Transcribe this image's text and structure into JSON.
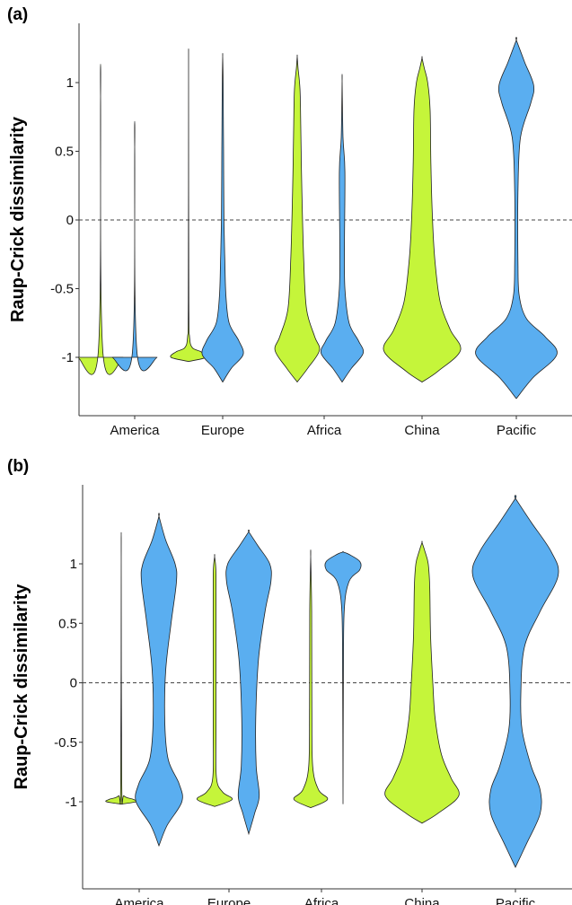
{
  "chart_data": [
    {
      "type": "violin",
      "panel_label": "(a)",
      "ylabel": "Raup-Crick dissimilarity",
      "categories": [
        "America",
        "Europe",
        "Africa",
        "China",
        "Pacific"
      ],
      "yticks": [
        "1",
        "0.5",
        "0",
        "-0.5",
        "-1"
      ],
      "ytick_values": [
        1,
        0.5,
        0,
        -0.5,
        -1
      ],
      "ylim": [
        -1.5,
        1.4
      ],
      "reference_line": 0,
      "colors": {
        "series1": "#c5f53a",
        "series2": "#5aaef0"
      },
      "violins": [
        {
          "category": "America",
          "series": 1,
          "min": -1.0,
          "max": 0.9,
          "profile": [
            [
              -1.0,
              0.9
            ],
            [
              -0.98,
              0.1
            ],
            [
              0.9,
              0
            ]
          ],
          "halfwidth": 28
        },
        {
          "category": "America",
          "series": 2,
          "min": -1.0,
          "max": 0.53,
          "profile": [
            [
              -1.0,
              0.9
            ],
            [
              -0.98,
              0.1
            ],
            [
              0.53,
              0
            ]
          ],
          "halfwidth": 28
        },
        {
          "category": "Europe",
          "series": 1,
          "min": -1.03,
          "max": 1.04,
          "profile": [
            [
              -1.03,
              0
            ],
            [
              -1.0,
              0.7
            ],
            [
              -0.96,
              0.5
            ],
            [
              -0.93,
              0.15
            ],
            [
              -0.85,
              0.04
            ],
            [
              -0.6,
              0.01
            ],
            [
              1.04,
              0
            ]
          ],
          "halfwidth": 28
        },
        {
          "category": "Europe",
          "series": 2,
          "min": -1.18,
          "max": 1.19,
          "profile": [
            [
              -1.18,
              0
            ],
            [
              -1.08,
              0.4
            ],
            [
              -0.98,
              0.95
            ],
            [
              -0.88,
              0.75
            ],
            [
              -0.75,
              0.3
            ],
            [
              -0.55,
              0.15
            ],
            [
              -0.3,
              0.1
            ],
            [
              0.0,
              0.06
            ],
            [
              0.5,
              0.04
            ],
            [
              1.0,
              0.02
            ],
            [
              1.19,
              0
            ]
          ],
          "halfwidth": 24
        },
        {
          "category": "Africa",
          "series": 1,
          "min": -1.18,
          "max": 1.19,
          "profile": [
            [
              -1.18,
              0
            ],
            [
              -1.08,
              0.45
            ],
            [
              -0.95,
              0.95
            ],
            [
              -0.85,
              0.75
            ],
            [
              -0.65,
              0.4
            ],
            [
              -0.3,
              0.28
            ],
            [
              0.2,
              0.2
            ],
            [
              0.7,
              0.15
            ],
            [
              0.95,
              0.12
            ],
            [
              1.1,
              0.04
            ],
            [
              1.19,
              0
            ]
          ],
          "halfwidth": 26
        },
        {
          "category": "Africa",
          "series": 2,
          "min": -1.18,
          "max": 1.01,
          "profile": [
            [
              -1.18,
              0
            ],
            [
              -1.08,
              0.4
            ],
            [
              -0.97,
              0.9
            ],
            [
              -0.88,
              0.7
            ],
            [
              -0.75,
              0.3
            ],
            [
              -0.5,
              0.12
            ],
            [
              -0.2,
              0.1
            ],
            [
              0.35,
              0.12
            ],
            [
              0.6,
              0.04
            ],
            [
              1.01,
              0
            ]
          ],
          "halfwidth": 26
        },
        {
          "category": "China",
          "series": 1,
          "min": -1.18,
          "max": 1.18,
          "profile": [
            [
              -1.18,
              0
            ],
            [
              -1.1,
              0.4
            ],
            [
              -0.95,
              0.95
            ],
            [
              -0.8,
              0.7
            ],
            [
              -0.6,
              0.45
            ],
            [
              -0.3,
              0.32
            ],
            [
              0.0,
              0.26
            ],
            [
              0.4,
              0.22
            ],
            [
              0.8,
              0.2
            ],
            [
              1.0,
              0.14
            ],
            [
              1.1,
              0.06
            ],
            [
              1.18,
              0
            ]
          ],
          "halfwidth": 45
        },
        {
          "category": "Pacific",
          "series": 2,
          "min": -1.3,
          "max": 1.31,
          "profile": [
            [
              -1.3,
              0
            ],
            [
              -1.15,
              0.4
            ],
            [
              -0.98,
              0.98
            ],
            [
              -0.85,
              0.7
            ],
            [
              -0.72,
              0.25
            ],
            [
              -0.55,
              0.07
            ],
            [
              -0.3,
              0.04
            ],
            [
              0.2,
              0.04
            ],
            [
              0.6,
              0.1
            ],
            [
              0.85,
              0.35
            ],
            [
              0.98,
              0.42
            ],
            [
              1.15,
              0.2
            ],
            [
              1.31,
              0
            ]
          ],
          "halfwidth": 46
        }
      ]
    },
    {
      "type": "violin",
      "panel_label": "(b)",
      "ylabel": "Raup-Crick dissimilarity",
      "categories": [
        "America",
        "Europe",
        "Africa",
        "China",
        "Pacific"
      ],
      "yticks": [
        "1",
        "0.5",
        "0",
        "-0.5",
        "-1"
      ],
      "ytick_values": [
        1,
        0.5,
        0,
        -0.5,
        -1
      ],
      "ylim": [
        -1.6,
        1.6
      ],
      "reference_line": 0,
      "colors": {
        "series1": "#c5f53a",
        "series2": "#5aaef0"
      },
      "violins": [
        {
          "category": "America",
          "series": 1,
          "min": -1.02,
          "max": 1.03,
          "profile": [
            [
              -1.02,
              0
            ],
            [
              -1.0,
              0.55
            ],
            [
              -0.98,
              0.45
            ],
            [
              -0.95,
              0.1
            ],
            [
              -0.85,
              0.02
            ],
            [
              1.03,
              0
            ]
          ],
          "halfwidth": 30
        },
        {
          "category": "America",
          "series": 2,
          "min": -1.37,
          "max": 1.4,
          "profile": [
            [
              -1.37,
              0
            ],
            [
              -1.2,
              0.3
            ],
            [
              -1.0,
              0.85
            ],
            [
              -0.85,
              0.75
            ],
            [
              -0.65,
              0.35
            ],
            [
              -0.35,
              0.22
            ],
            [
              0.1,
              0.25
            ],
            [
              0.5,
              0.45
            ],
            [
              0.85,
              0.65
            ],
            [
              1.0,
              0.6
            ],
            [
              1.2,
              0.25
            ],
            [
              1.4,
              0
            ]
          ],
          "halfwidth": 30
        },
        {
          "category": "Europe",
          "series": 1,
          "min": -1.04,
          "max": 1.06,
          "profile": [
            [
              -1.04,
              0
            ],
            [
              -0.98,
              0.75
            ],
            [
              -0.92,
              0.35
            ],
            [
              -0.8,
              0.08
            ],
            [
              -0.4,
              0.06
            ],
            [
              0.3,
              0.06
            ],
            [
              0.9,
              0.06
            ],
            [
              1.06,
              0
            ]
          ],
          "halfwidth": 26
        },
        {
          "category": "Europe",
          "series": 2,
          "min": -1.27,
          "max": 1.27,
          "profile": [
            [
              -1.27,
              0
            ],
            [
              -1.1,
              0.25
            ],
            [
              -0.95,
              0.45
            ],
            [
              -0.7,
              0.32
            ],
            [
              -0.3,
              0.3
            ],
            [
              0.2,
              0.42
            ],
            [
              0.6,
              0.7
            ],
            [
              0.85,
              0.95
            ],
            [
              1.0,
              0.9
            ],
            [
              1.15,
              0.4
            ],
            [
              1.27,
              0
            ]
          ],
          "halfwidth": 26
        },
        {
          "category": "Africa",
          "series": 1,
          "min": -1.05,
          "max": 1.06,
          "profile": [
            [
              -1.05,
              0
            ],
            [
              -0.98,
              0.85
            ],
            [
              -0.9,
              0.4
            ],
            [
              -0.7,
              0.1
            ],
            [
              -0.2,
              0.06
            ],
            [
              0.6,
              0.05
            ],
            [
              1.06,
              0
            ]
          ],
          "halfwidth": 22
        },
        {
          "category": "Africa",
          "series": 2,
          "min": -1.02,
          "max": 1.1,
          "profile": [
            [
              -1.02,
              0
            ],
            [
              0.0,
              0.02
            ],
            [
              0.6,
              0.06
            ],
            [
              0.85,
              0.3
            ],
            [
              0.95,
              0.85
            ],
            [
              1.02,
              0.85
            ],
            [
              1.08,
              0.3
            ],
            [
              1.1,
              0
            ]
          ],
          "halfwidth": 22
        },
        {
          "category": "China",
          "series": 1,
          "min": -1.18,
          "max": 1.18,
          "profile": [
            [
              -1.18,
              0
            ],
            [
              -1.1,
              0.4
            ],
            [
              -0.95,
              0.95
            ],
            [
              -0.8,
              0.75
            ],
            [
              -0.6,
              0.5
            ],
            [
              -0.3,
              0.34
            ],
            [
              0.0,
              0.28
            ],
            [
              0.4,
              0.22
            ],
            [
              0.8,
              0.2
            ],
            [
              1.0,
              0.16
            ],
            [
              1.1,
              0.08
            ],
            [
              1.18,
              0
            ]
          ],
          "halfwidth": 43
        },
        {
          "category": "Pacific",
          "series": 2,
          "min": -1.55,
          "max": 1.55,
          "profile": [
            [
              -1.55,
              0
            ],
            [
              -1.35,
              0.25
            ],
            [
              -1.1,
              0.55
            ],
            [
              -0.9,
              0.55
            ],
            [
              -0.7,
              0.35
            ],
            [
              -0.4,
              0.15
            ],
            [
              -0.1,
              0.12
            ],
            [
              0.3,
              0.2
            ],
            [
              0.6,
              0.55
            ],
            [
              0.9,
              0.95
            ],
            [
              1.1,
              0.8
            ],
            [
              1.35,
              0.35
            ],
            [
              1.55,
              0
            ]
          ],
          "halfwidth": 50
        }
      ]
    }
  ]
}
